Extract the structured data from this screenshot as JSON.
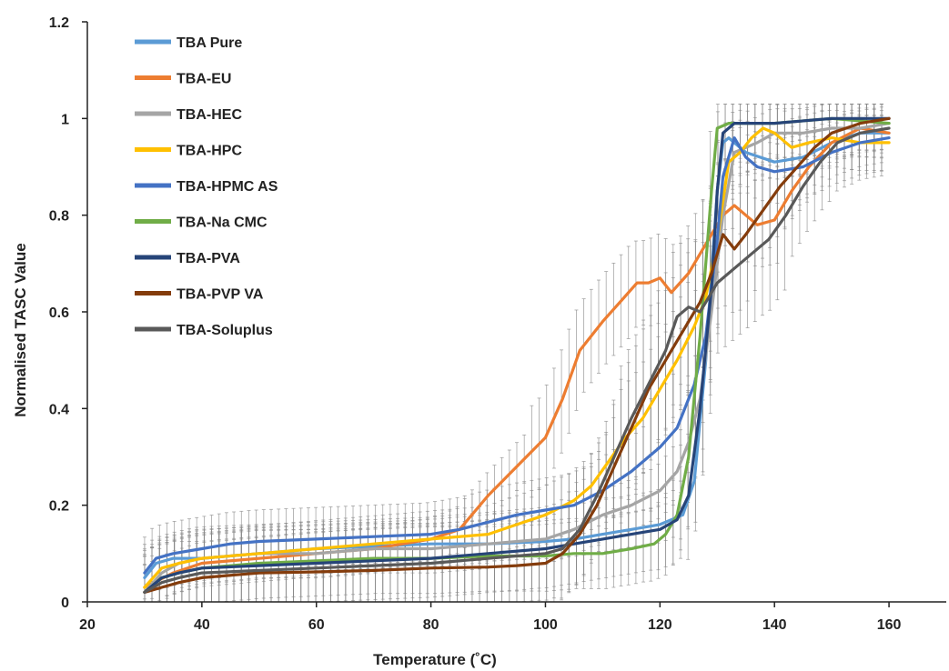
{
  "chart_data": {
    "type": "line",
    "title": "",
    "xlabel": "Temperature (˚C)",
    "ylabel": "Normalised TASC Value",
    "xlim": [
      20,
      170
    ],
    "ylim": [
      0,
      1.2
    ],
    "x_ticks": [
      "20",
      "40",
      "60",
      "80",
      "100",
      "120",
      "140",
      "160"
    ],
    "y_ticks": [
      "0",
      "0.2",
      "0.4",
      "0.6",
      "0.8",
      "1",
      "1.2"
    ],
    "grid": false,
    "error_bars": true,
    "legend_position": "top-left",
    "series": [
      {
        "name": "TBA Pure",
        "color": "#5b9bd5",
        "points": [
          [
            30,
            0.05
          ],
          [
            32,
            0.08
          ],
          [
            35,
            0.09
          ],
          [
            40,
            0.09
          ],
          [
            50,
            0.1
          ],
          [
            60,
            0.11
          ],
          [
            70,
            0.115
          ],
          [
            80,
            0.12
          ],
          [
            90,
            0.12
          ],
          [
            100,
            0.125
          ],
          [
            105,
            0.13
          ],
          [
            110,
            0.14
          ],
          [
            115,
            0.15
          ],
          [
            120,
            0.16
          ],
          [
            124,
            0.18
          ],
          [
            126,
            0.25
          ],
          [
            128,
            0.5
          ],
          [
            130,
            0.85
          ],
          [
            131,
            0.95
          ],
          [
            132,
            0.96
          ],
          [
            135,
            0.93
          ],
          [
            140,
            0.91
          ],
          [
            145,
            0.92
          ],
          [
            150,
            0.95
          ],
          [
            155,
            0.97
          ],
          [
            160,
            0.97
          ]
        ]
      },
      {
        "name": "TBA-EU",
        "color": "#ed7d31",
        "points": [
          [
            30,
            0.03
          ],
          [
            35,
            0.06
          ],
          [
            40,
            0.08
          ],
          [
            50,
            0.09
          ],
          [
            60,
            0.1
          ],
          [
            70,
            0.11
          ],
          [
            80,
            0.13
          ],
          [
            85,
            0.15
          ],
          [
            90,
            0.22
          ],
          [
            95,
            0.28
          ],
          [
            100,
            0.34
          ],
          [
            103,
            0.42
          ],
          [
            106,
            0.52
          ],
          [
            110,
            0.58
          ],
          [
            113,
            0.62
          ],
          [
            116,
            0.66
          ],
          [
            118,
            0.66
          ],
          [
            120,
            0.67
          ],
          [
            122,
            0.64
          ],
          [
            125,
            0.68
          ],
          [
            127,
            0.72
          ],
          [
            129,
            0.76
          ],
          [
            131,
            0.8
          ],
          [
            133,
            0.82
          ],
          [
            135,
            0.8
          ],
          [
            137,
            0.78
          ],
          [
            140,
            0.79
          ],
          [
            143,
            0.85
          ],
          [
            146,
            0.9
          ],
          [
            150,
            0.95
          ],
          [
            155,
            0.98
          ],
          [
            160,
            0.97
          ]
        ]
      },
      {
        "name": "TBA-HEC",
        "color": "#a5a5a5",
        "points": [
          [
            30,
            0.02
          ],
          [
            33,
            0.06
          ],
          [
            36,
            0.08
          ],
          [
            40,
            0.09
          ],
          [
            50,
            0.1
          ],
          [
            60,
            0.1
          ],
          [
            70,
            0.11
          ],
          [
            80,
            0.11
          ],
          [
            90,
            0.12
          ],
          [
            100,
            0.13
          ],
          [
            105,
            0.15
          ],
          [
            110,
            0.18
          ],
          [
            115,
            0.2
          ],
          [
            120,
            0.23
          ],
          [
            123,
            0.27
          ],
          [
            125,
            0.33
          ],
          [
            127,
            0.42
          ],
          [
            129,
            0.6
          ],
          [
            131,
            0.8
          ],
          [
            133,
            0.93
          ],
          [
            137,
            0.95
          ],
          [
            140,
            0.97
          ],
          [
            145,
            0.97
          ],
          [
            150,
            0.98
          ],
          [
            155,
            0.98
          ],
          [
            160,
            0.99
          ]
        ]
      },
      {
        "name": "TBA-HPC",
        "color": "#ffc000",
        "points": [
          [
            30,
            0.03
          ],
          [
            33,
            0.07
          ],
          [
            36,
            0.08
          ],
          [
            40,
            0.09
          ],
          [
            50,
            0.1
          ],
          [
            60,
            0.11
          ],
          [
            70,
            0.12
          ],
          [
            80,
            0.13
          ],
          [
            90,
            0.14
          ],
          [
            95,
            0.16
          ],
          [
            100,
            0.18
          ],
          [
            105,
            0.21
          ],
          [
            108,
            0.24
          ],
          [
            111,
            0.29
          ],
          [
            114,
            0.34
          ],
          [
            117,
            0.38
          ],
          [
            120,
            0.44
          ],
          [
            123,
            0.5
          ],
          [
            126,
            0.57
          ],
          [
            128,
            0.63
          ],
          [
            130,
            0.75
          ],
          [
            132,
            0.91
          ],
          [
            134,
            0.93
          ],
          [
            136,
            0.96
          ],
          [
            138,
            0.98
          ],
          [
            140,
            0.97
          ],
          [
            143,
            0.94
          ],
          [
            146,
            0.95
          ],
          [
            150,
            0.96
          ],
          [
            155,
            0.95
          ],
          [
            160,
            0.95
          ]
        ]
      },
      {
        "name": "TBA-HPMC AS",
        "color": "#4472c4",
        "points": [
          [
            30,
            0.06
          ],
          [
            32,
            0.09
          ],
          [
            35,
            0.1
          ],
          [
            40,
            0.11
          ],
          [
            45,
            0.12
          ],
          [
            50,
            0.125
          ],
          [
            60,
            0.13
          ],
          [
            70,
            0.135
          ],
          [
            80,
            0.14
          ],
          [
            85,
            0.15
          ],
          [
            90,
            0.165
          ],
          [
            95,
            0.18
          ],
          [
            100,
            0.19
          ],
          [
            105,
            0.2
          ],
          [
            110,
            0.23
          ],
          [
            115,
            0.27
          ],
          [
            120,
            0.32
          ],
          [
            123,
            0.36
          ],
          [
            126,
            0.45
          ],
          [
            128,
            0.55
          ],
          [
            130,
            0.75
          ],
          [
            131,
            0.88
          ],
          [
            133,
            0.96
          ],
          [
            135,
            0.92
          ],
          [
            137,
            0.9
          ],
          [
            140,
            0.89
          ],
          [
            145,
            0.9
          ],
          [
            150,
            0.93
          ],
          [
            155,
            0.95
          ],
          [
            160,
            0.96
          ]
        ]
      },
      {
        "name": "TBA-Na CMC",
        "color": "#70ad47",
        "points": [
          [
            30,
            0.02
          ],
          [
            33,
            0.05
          ],
          [
            36,
            0.06
          ],
          [
            40,
            0.07
          ],
          [
            50,
            0.08
          ],
          [
            60,
            0.085
          ],
          [
            70,
            0.09
          ],
          [
            80,
            0.09
          ],
          [
            90,
            0.095
          ],
          [
            100,
            0.095
          ],
          [
            105,
            0.1
          ],
          [
            110,
            0.1
          ],
          [
            115,
            0.11
          ],
          [
            119,
            0.12
          ],
          [
            121,
            0.14
          ],
          [
            123,
            0.18
          ],
          [
            125,
            0.3
          ],
          [
            127,
            0.55
          ],
          [
            129,
            0.85
          ],
          [
            130,
            0.98
          ],
          [
            132,
            0.99
          ],
          [
            140,
            0.99
          ],
          [
            150,
            1.0
          ],
          [
            160,
            0.99
          ]
        ]
      },
      {
        "name": "TBA-PVA",
        "color": "#264478",
        "points": [
          [
            30,
            0.02
          ],
          [
            33,
            0.05
          ],
          [
            36,
            0.06
          ],
          [
            40,
            0.07
          ],
          [
            50,
            0.075
          ],
          [
            60,
            0.08
          ],
          [
            70,
            0.085
          ],
          [
            80,
            0.09
          ],
          [
            90,
            0.1
          ],
          [
            100,
            0.11
          ],
          [
            105,
            0.12
          ],
          [
            110,
            0.13
          ],
          [
            115,
            0.14
          ],
          [
            120,
            0.15
          ],
          [
            123,
            0.17
          ],
          [
            125,
            0.22
          ],
          [
            127,
            0.4
          ],
          [
            129,
            0.65
          ],
          [
            130,
            0.85
          ],
          [
            131,
            0.97
          ],
          [
            133,
            0.99
          ],
          [
            140,
            0.99
          ],
          [
            150,
            1.0
          ],
          [
            160,
            1.0
          ]
        ]
      },
      {
        "name": "TBA-PVP VA",
        "color": "#843c0c",
        "points": [
          [
            30,
            0.02
          ],
          [
            33,
            0.03
          ],
          [
            36,
            0.04
          ],
          [
            40,
            0.05
          ],
          [
            50,
            0.06
          ],
          [
            60,
            0.062
          ],
          [
            70,
            0.065
          ],
          [
            80,
            0.07
          ],
          [
            90,
            0.072
          ],
          [
            95,
            0.075
          ],
          [
            100,
            0.08
          ],
          [
            103,
            0.1
          ],
          [
            106,
            0.14
          ],
          [
            109,
            0.2
          ],
          [
            112,
            0.28
          ],
          [
            115,
            0.36
          ],
          [
            118,
            0.44
          ],
          [
            121,
            0.5
          ],
          [
            124,
            0.56
          ],
          [
            127,
            0.62
          ],
          [
            129,
            0.68
          ],
          [
            131,
            0.76
          ],
          [
            133,
            0.73
          ],
          [
            135,
            0.76
          ],
          [
            138,
            0.81
          ],
          [
            141,
            0.86
          ],
          [
            144,
            0.9
          ],
          [
            147,
            0.94
          ],
          [
            150,
            0.97
          ],
          [
            155,
            0.99
          ],
          [
            160,
            1.0
          ]
        ]
      },
      {
        "name": "TBA-Soluplus",
        "color": "#595959",
        "points": [
          [
            30,
            0.02
          ],
          [
            33,
            0.04
          ],
          [
            36,
            0.05
          ],
          [
            40,
            0.06
          ],
          [
            50,
            0.065
          ],
          [
            60,
            0.07
          ],
          [
            70,
            0.075
          ],
          [
            80,
            0.08
          ],
          [
            90,
            0.09
          ],
          [
            100,
            0.1
          ],
          [
            103,
            0.11
          ],
          [
            106,
            0.15
          ],
          [
            109,
            0.22
          ],
          [
            112,
            0.3
          ],
          [
            115,
            0.38
          ],
          [
            118,
            0.45
          ],
          [
            121,
            0.52
          ],
          [
            123,
            0.59
          ],
          [
            125,
            0.61
          ],
          [
            127,
            0.6
          ],
          [
            128,
            0.62
          ],
          [
            130,
            0.66
          ],
          [
            133,
            0.69
          ],
          [
            136,
            0.72
          ],
          [
            139,
            0.75
          ],
          [
            142,
            0.8
          ],
          [
            145,
            0.86
          ],
          [
            148,
            0.91
          ],
          [
            151,
            0.95
          ],
          [
            155,
            0.97
          ],
          [
            160,
            0.98
          ]
        ]
      }
    ]
  }
}
